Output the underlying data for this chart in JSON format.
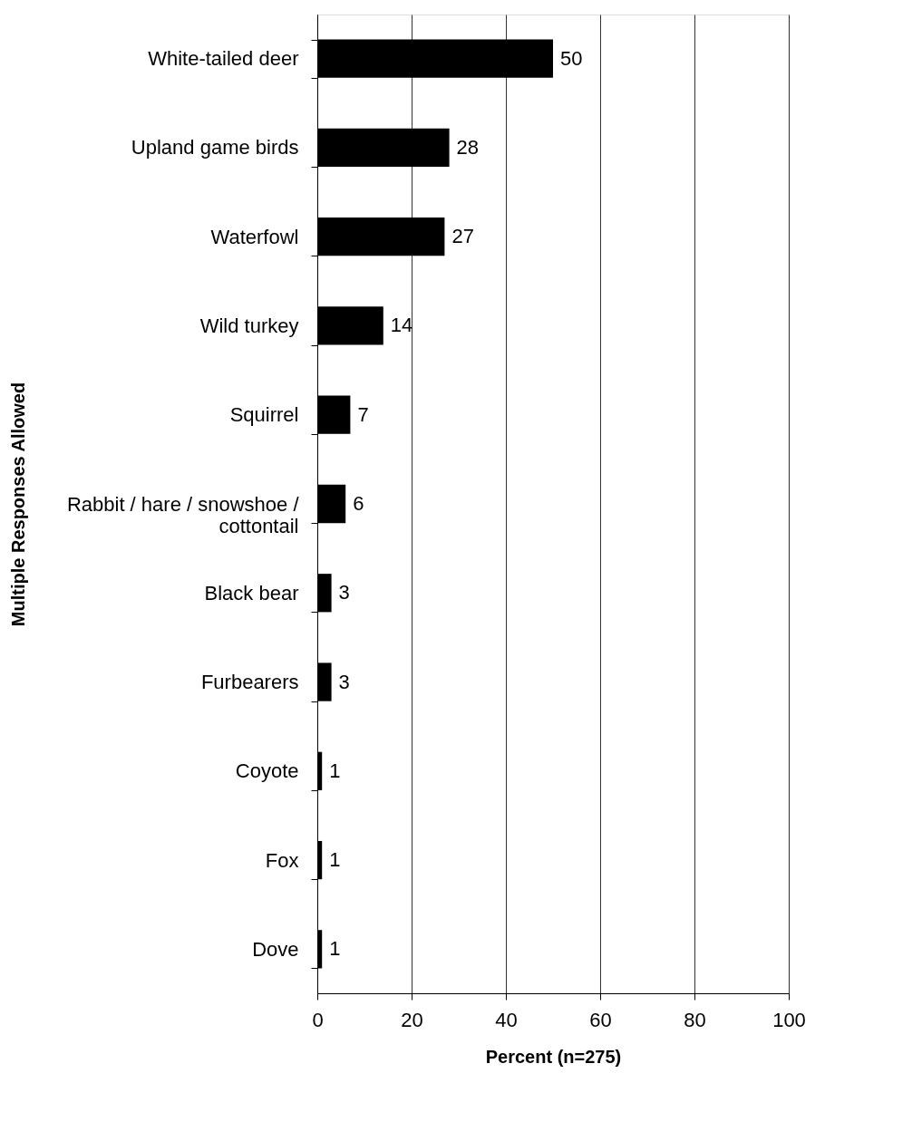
{
  "chart_data": {
    "type": "bar",
    "orientation": "horizontal",
    "categories": [
      "White-tailed deer",
      "Upland game birds",
      "Waterfowl",
      "Wild turkey",
      "Squirrel",
      "Rabbit / hare / snowshoe / cottontail",
      "Black bear",
      "Furbearers",
      "Coyote",
      "Fox",
      "Dove"
    ],
    "values": [
      50,
      28,
      27,
      14,
      7,
      6,
      3,
      3,
      1,
      1,
      1
    ],
    "color": "#000000",
    "xlabel": "Percent (n=275)",
    "ylabel": "Multiple Responses Allowed",
    "xlim": [
      0,
      100
    ],
    "xticks": [
      0,
      20,
      40,
      60,
      80,
      100
    ],
    "grid": "x",
    "data_labels": true
  }
}
